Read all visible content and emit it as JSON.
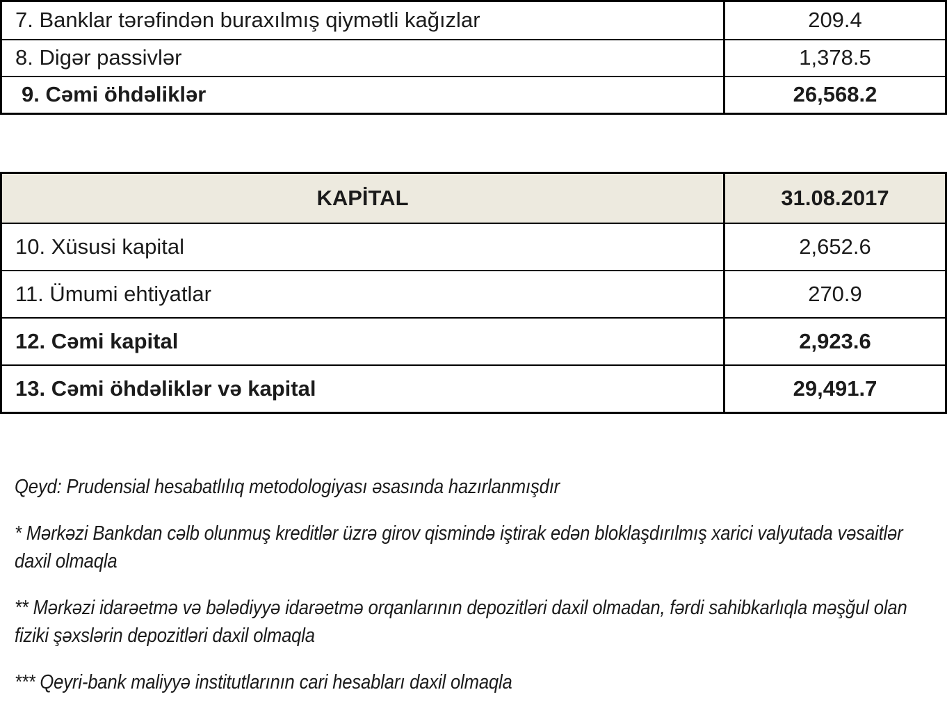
{
  "colors": {
    "header_bg": "#edeadf",
    "border": "#000000",
    "text": "#1b1b1b"
  },
  "liabilities_table": {
    "rows": [
      {
        "label": "7. Banklar tərəfindən buraxılmış qiymətli kağızlar",
        "value": "209.4"
      },
      {
        "label": "8. Digər passivlər",
        "value": "1,378.5"
      },
      {
        "label": "9. Cəmi öhdəliklər",
        "value": "26,568.2"
      }
    ]
  },
  "capital_table": {
    "header": {
      "title": "KAPİTAL",
      "date": "31.08.2017"
    },
    "rows": [
      {
        "label": "10. Xüsusi kapital",
        "value": "2,652.6"
      },
      {
        "label": "11. Ümumi ehtiyatlar",
        "value": "270.9"
      },
      {
        "label": "12. Cəmi kapital",
        "value": "2,923.6"
      },
      {
        "label": "13. Cəmi öhdəliklər və kapital",
        "value": "29,491.7"
      }
    ]
  },
  "notes": {
    "qeyd": "Qeyd: Prudensial hesabatlılıq metodologiyası əsasında hazırlanmışdır",
    "footnote_1": "* Mərkəzi Bankdan cəlb olunmuş kreditlər üzrə girov qismində iştirak edən bloklaşdırılmış xarici valyutada vəsaitlər daxil olmaqla",
    "footnote_2": "** Mərkəzi idarəetmə və bələdiyyə idarəetmə orqanlarının depozitləri daxil olmadan, fərdi sahibkarlıqla məşğul olan fiziki şəxslərin depozitləri daxil olmaqla",
    "footnote_3": "*** Qeyri-bank maliyyə institutlarının cari hesabları daxil olmaqla"
  }
}
